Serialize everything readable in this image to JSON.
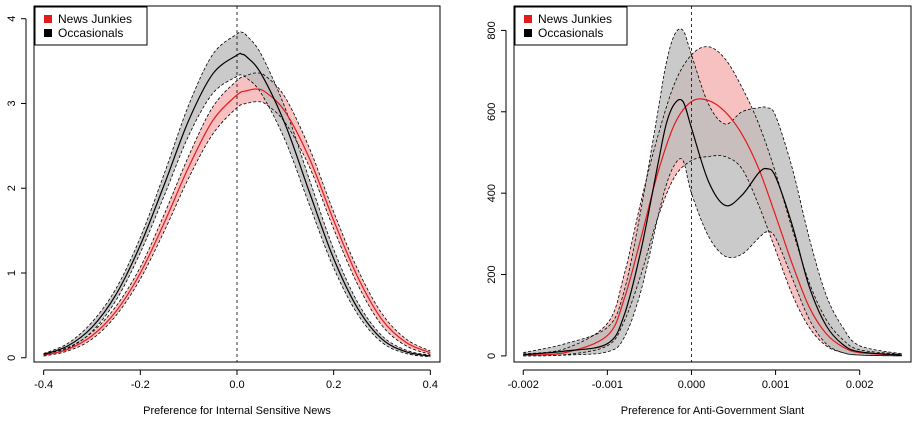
{
  "chart_data": [
    {
      "type": "line",
      "xlabel": "Preference for Internal Sensitive News",
      "ylabel": "",
      "xlim": [
        -0.42,
        0.42
      ],
      "ylim": [
        -0.05,
        4.15
      ],
      "xticks": [
        -0.4,
        -0.2,
        0.0,
        0.2,
        0.4
      ],
      "xtick_labels": [
        "-0.4",
        "-0.2",
        "0.0",
        "0.2",
        "0.4"
      ],
      "yticks": [
        0,
        1,
        2,
        3,
        4
      ],
      "ytick_labels": [
        "0",
        "1",
        "2",
        "3",
        "4"
      ],
      "reference_line_x": 0,
      "legend_placement": "top-left",
      "legend": [
        {
          "label": "News Junkies",
          "color": "#e31a1c"
        },
        {
          "label": "Occasionals",
          "color": "#000000"
        }
      ],
      "series": [
        {
          "name": "News Junkies",
          "color": "#e31a1c",
          "band_color": "#f4a6a6",
          "x": [
            -0.4,
            -0.35,
            -0.3,
            -0.25,
            -0.2,
            -0.15,
            -0.1,
            -0.05,
            0.0,
            0.02,
            0.04,
            0.06,
            0.1,
            0.15,
            0.2,
            0.25,
            0.3,
            0.35,
            0.4
          ],
          "y": [
            0.03,
            0.1,
            0.26,
            0.55,
            1.0,
            1.6,
            2.25,
            2.8,
            3.1,
            3.15,
            3.17,
            3.13,
            2.9,
            2.35,
            1.62,
            0.95,
            0.45,
            0.18,
            0.06
          ],
          "lower": [
            0.02,
            0.08,
            0.22,
            0.5,
            0.93,
            1.5,
            2.12,
            2.64,
            2.95,
            3.0,
            3.02,
            2.99,
            2.77,
            2.25,
            1.52,
            0.86,
            0.38,
            0.14,
            0.04
          ],
          "upper": [
            0.04,
            0.12,
            0.3,
            0.61,
            1.07,
            1.7,
            2.38,
            2.96,
            3.27,
            3.33,
            3.36,
            3.32,
            3.07,
            2.47,
            1.72,
            1.04,
            0.52,
            0.22,
            0.08
          ]
        },
        {
          "name": "Occasionals",
          "color": "#000000",
          "band_color": "#bdbdbd",
          "x": [
            -0.4,
            -0.35,
            -0.3,
            -0.25,
            -0.2,
            -0.15,
            -0.1,
            -0.05,
            0.0,
            0.01,
            0.02,
            0.05,
            0.1,
            0.15,
            0.2,
            0.25,
            0.3,
            0.35,
            0.4
          ],
          "y": [
            0.04,
            0.14,
            0.36,
            0.75,
            1.33,
            2.05,
            2.8,
            3.35,
            3.57,
            3.58,
            3.55,
            3.35,
            2.75,
            1.95,
            1.17,
            0.58,
            0.22,
            0.07,
            0.02
          ],
          "lower": [
            0.03,
            0.11,
            0.31,
            0.68,
            1.24,
            1.92,
            2.62,
            3.12,
            3.32,
            3.33,
            3.3,
            3.12,
            2.56,
            1.8,
            1.06,
            0.51,
            0.18,
            0.05,
            0.01
          ],
          "upper": [
            0.05,
            0.17,
            0.42,
            0.82,
            1.42,
            2.18,
            2.98,
            3.58,
            3.82,
            3.84,
            3.8,
            3.58,
            2.94,
            2.1,
            1.28,
            0.65,
            0.26,
            0.09,
            0.03
          ]
        }
      ]
    },
    {
      "type": "line",
      "xlabel": "Preference for Anti-Government Slant",
      "ylabel": "",
      "xlim": [
        -0.00211,
        0.00261
      ],
      "ylim": [
        -15,
        860
      ],
      "xticks": [
        -0.002,
        -0.001,
        0.0,
        0.001,
        0.002
      ],
      "xtick_labels": [
        "-0.002",
        "-0.001",
        "0.000",
        "0.001",
        "0.002"
      ],
      "yticks": [
        0,
        200,
        400,
        600,
        800
      ],
      "ytick_labels": [
        "0",
        "200",
        "400",
        "600",
        "800"
      ],
      "reference_line_x": 0,
      "legend_placement": "top-left",
      "legend": [
        {
          "label": "News Junkies",
          "color": "#e31a1c"
        },
        {
          "label": "Occasionals",
          "color": "#000000"
        }
      ],
      "series": [
        {
          "name": "News Junkies",
          "color": "#e31a1c",
          "band_color": "#f4a6a6",
          "x": [
            -0.002,
            -0.0015,
            -0.001,
            -0.0008,
            -0.0006,
            -0.0004,
            -0.0002,
            0.0,
            0.0002,
            0.0004,
            0.0006,
            0.0008,
            0.001,
            0.0012,
            0.0014,
            0.0016,
            0.0018,
            0.002,
            0.0025
          ],
          "y": [
            2,
            8,
            50,
            140,
            290,
            450,
            570,
            625,
            628,
            600,
            545,
            460,
            345,
            225,
            120,
            55,
            22,
            8,
            2
          ],
          "lower": [
            0,
            3,
            25,
            85,
            200,
            340,
            440,
            480,
            490,
            490,
            460,
            370,
            260,
            150,
            70,
            25,
            8,
            2,
            0
          ],
          "upper": [
            5,
            18,
            80,
            200,
            380,
            540,
            670,
            740,
            760,
            730,
            660,
            570,
            450,
            310,
            180,
            90,
            40,
            15,
            4
          ]
        },
        {
          "name": "Occasionals",
          "color": "#000000",
          "band_color": "#bdbdbd",
          "x": [
            -0.002,
            -0.0015,
            -0.001,
            -0.0008,
            -0.0006,
            -0.0004,
            -0.0003,
            -0.0002,
            -0.0001,
            0.0,
            0.0002,
            0.0004,
            0.0006,
            0.0008,
            0.0009,
            0.001,
            0.0012,
            0.0014,
            0.0016,
            0.0018,
            0.002,
            0.0025
          ],
          "y": [
            3,
            12,
            30,
            100,
            260,
            470,
            570,
            620,
            625,
            560,
            430,
            370,
            395,
            450,
            460,
            440,
            320,
            170,
            75,
            28,
            10,
            2
          ],
          "lower": [
            0,
            2,
            10,
            45,
            160,
            340,
            420,
            470,
            480,
            400,
            295,
            245,
            250,
            290,
            305,
            290,
            190,
            90,
            30,
            8,
            2,
            0
          ],
          "upper": [
            8,
            30,
            70,
            160,
            360,
            600,
            720,
            790,
            800,
            740,
            620,
            570,
            600,
            610,
            610,
            590,
            460,
            290,
            150,
            70,
            25,
            5
          ]
        }
      ]
    }
  ]
}
